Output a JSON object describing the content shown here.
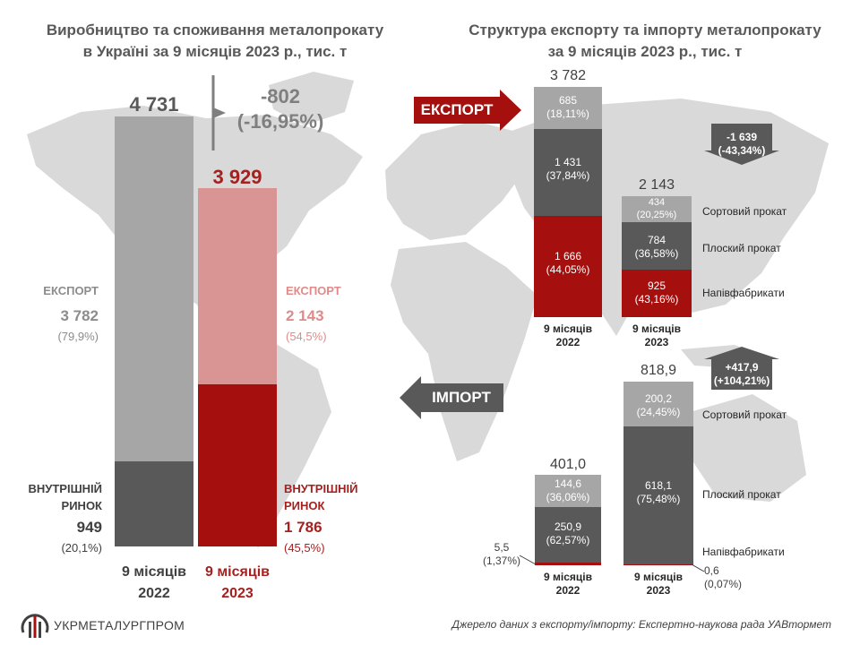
{
  "colors": {
    "grey_light": "#a6a6a6",
    "grey_dark": "#595959",
    "red": "#a50f0d",
    "pink": "#d99594",
    "map": "#d9d9d9",
    "red_text": "#a5201e",
    "pink_text": "#e08a8a"
  },
  "left_title": [
    "Виробництво та споживання металопрокату",
    "в Україні за 9 місяців 2023 р., тис. т"
  ],
  "right_title": [
    "Структура експорту та імпорту металопрокату",
    "за 9 місяців 2023 р., тис. т"
  ],
  "left": {
    "total_2022": "4 731",
    "total_2023": "3 929",
    "change_value": "-802",
    "change_pct": "(-16,95%)",
    "export_label": "ЕКСПОРТ",
    "export_2022_value": "3 782",
    "export_2022_share": "(79,9%)",
    "export_2023_value": "2 143",
    "export_2023_share": "(54,5%)",
    "domestic_label_1": "ВНУТРІШНІЙ",
    "domestic_label_2": "РИНОК",
    "domestic_2022_value": "949",
    "domestic_2022_share": "(20,1%)",
    "domestic_2023_value": "1 786",
    "domestic_2023_share": "(45,5%)",
    "caption_2022": [
      "9 місяців",
      "2022"
    ],
    "caption_2023": [
      "9 місяців",
      "2023"
    ]
  },
  "export_arrow": "ЕКСПОРТ",
  "import_arrow": "ІМПОРТ",
  "export_block": {
    "total_2022": "3 782",
    "total_2023": "2 143",
    "seg_2022": [
      {
        "value": "685",
        "share": "(18,11%)"
      },
      {
        "value": "1 431",
        "share": "(37,84%)"
      },
      {
        "value": "1 666",
        "share": "(44,05%)"
      }
    ],
    "seg_2023": [
      {
        "value": "434",
        "share": "(20,25%)"
      },
      {
        "value": "784",
        "share": "(36,58%)"
      },
      {
        "value": "925",
        "share": "(43,16%)"
      }
    ],
    "delta": [
      "-1 639",
      "(-43,34%)"
    ],
    "caption_2022": [
      "9 місяців",
      "2022"
    ],
    "caption_2023": [
      "9 місяців",
      "2023"
    ]
  },
  "import_block": {
    "total_2022": "401,0",
    "total_2023": "818,9",
    "seg_2022": [
      {
        "value": "144,6",
        "share": "(36,06%)"
      },
      {
        "value": "250,9",
        "share": "(62,57%)"
      },
      {
        "value": "5,5",
        "share": "(1,37%)"
      }
    ],
    "seg_2023": [
      {
        "value": "200,2",
        "share": "(24,45%)"
      },
      {
        "value": "618,1",
        "share": "(75,48%)"
      },
      {
        "value": "0,6",
        "share": "(0,07%)"
      }
    ],
    "delta": [
      "+417,9",
      "(+104,21%)"
    ],
    "caption_2022": [
      "9 місяців",
      "2022"
    ],
    "caption_2023": [
      "9 місяців",
      "2023"
    ]
  },
  "categories": [
    "Сортовий прокат",
    "Плоский прокат",
    "Напівфабрикати"
  ],
  "footer": {
    "logo_text": "УКРМЕТАЛУРГПРОМ",
    "source": "Джерело даних з експорту/імпорту: Експертно-наукова рада  УАВтормет"
  },
  "chart_data": [
    {
      "type": "bar",
      "title": "Виробництво та споживання металопрокату в Україні за 9 місяців 2023 р., тис. т",
      "categories": [
        "9 місяців 2022",
        "9 місяців 2023"
      ],
      "series": [
        {
          "name": "ВНУТРІШНІЙ РИНОК",
          "values": [
            949,
            1786
          ]
        },
        {
          "name": "ЕКСПОРТ",
          "values": [
            3782,
            2143
          ]
        }
      ],
      "totals": [
        4731,
        3929
      ],
      "shares_pct": {
        "ЕКСПОРТ": [
          79.9,
          54.5
        ],
        "ВНУТРІШНІЙ РИНОК": [
          20.1,
          45.5
        ]
      },
      "change": {
        "value": -802,
        "pct": -16.95
      }
    },
    {
      "type": "bar",
      "title": "Структура експорту та імпорту металопрокату за 9 місяців 2023 р., тис. т",
      "subtitle": "ЕКСПОРТ",
      "categories": [
        "9 місяців 2022",
        "9 місяців 2023"
      ],
      "series": [
        {
          "name": "Напівфабрикати",
          "values": [
            1666,
            925
          ]
        },
        {
          "name": "Плоский прокат",
          "values": [
            1431,
            784
          ]
        },
        {
          "name": "Сортовий прокат",
          "values": [
            685,
            434
          ]
        }
      ],
      "totals": [
        3782,
        2143
      ],
      "change": {
        "value": -1639,
        "pct": -43.34
      }
    },
    {
      "type": "bar",
      "title": "Структура експорту та імпорту металопрокату за 9 місяців 2023 р., тис. т",
      "subtitle": "ІМПОРТ",
      "categories": [
        "9 місяців 2022",
        "9 місяців 2023"
      ],
      "series": [
        {
          "name": "Напівфабрикати",
          "values": [
            5.5,
            0.6
          ]
        },
        {
          "name": "Плоский прокат",
          "values": [
            250.9,
            618.1
          ]
        },
        {
          "name": "Сортовий прокат",
          "values": [
            144.6,
            200.2
          ]
        }
      ],
      "totals": [
        401.0,
        818.9
      ],
      "change": {
        "value": 417.9,
        "pct": 104.21
      }
    }
  ]
}
